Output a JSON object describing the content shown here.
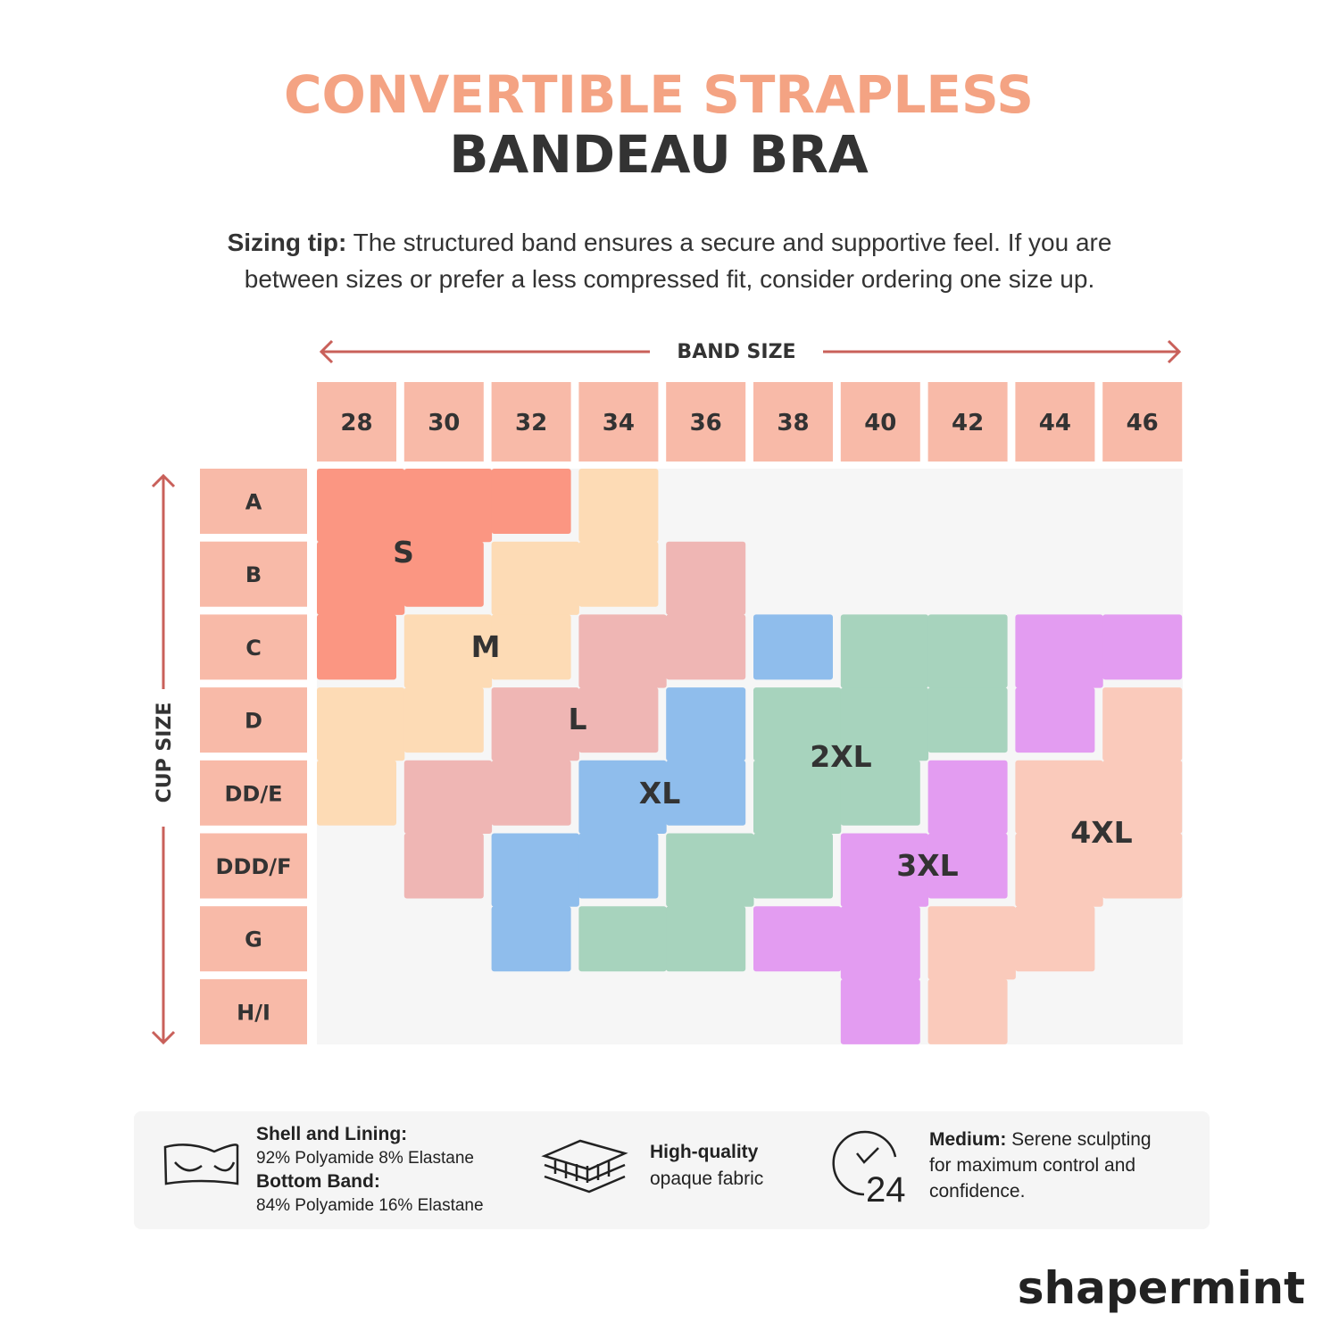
{
  "header": {
    "title_line1": "CONVERTIBLE STRAPLESS",
    "title_line2": "BANDEAU BRA"
  },
  "tip": {
    "label": "Sizing tip:",
    "lines": [
      " The structured band ensures a secure and supportive feel. If you are",
      "between sizes or prefer a less compressed fit, consider ordering one size up."
    ]
  },
  "grid": {
    "band_title": "BAND SIZE",
    "cup_title": "CUP SIZE",
    "bands": [
      "28",
      "30",
      "32",
      "34",
      "36",
      "38",
      "40",
      "42",
      "44",
      "46"
    ],
    "cups": [
      "A",
      "B",
      "C",
      "D",
      "DD/E",
      "DDD/F",
      "G",
      "H/I"
    ],
    "sizes": [
      {
        "label": "S",
        "color": "#fb9682"
      },
      {
        "label": "M",
        "color": "#fddbb5"
      },
      {
        "label": "L",
        "color": "#efb6b4"
      },
      {
        "label": "XL",
        "color": "#8fbdec"
      },
      {
        "label": "2XL",
        "color": "#a7d3bd"
      },
      {
        "label": "3XL",
        "color": "#e39cf1"
      },
      {
        "label": "4XL",
        "color": "#facabb"
      }
    ]
  },
  "features": {
    "material": {
      "shell_title": "Shell and Lining:",
      "shell_text": "92% Polyamide 8% Elastane",
      "band_title": "Bottom Band:",
      "band_text": "84% Polyamide 16% Elastane"
    },
    "fabric": {
      "title": "High-quality",
      "text": "opaque fabric"
    },
    "control": {
      "title": "Medium:",
      "lines": [
        " Serene sculpting",
        "for maximum control and",
        "confidence."
      ],
      "icon_label": "24"
    }
  },
  "brand": "shapermint"
}
